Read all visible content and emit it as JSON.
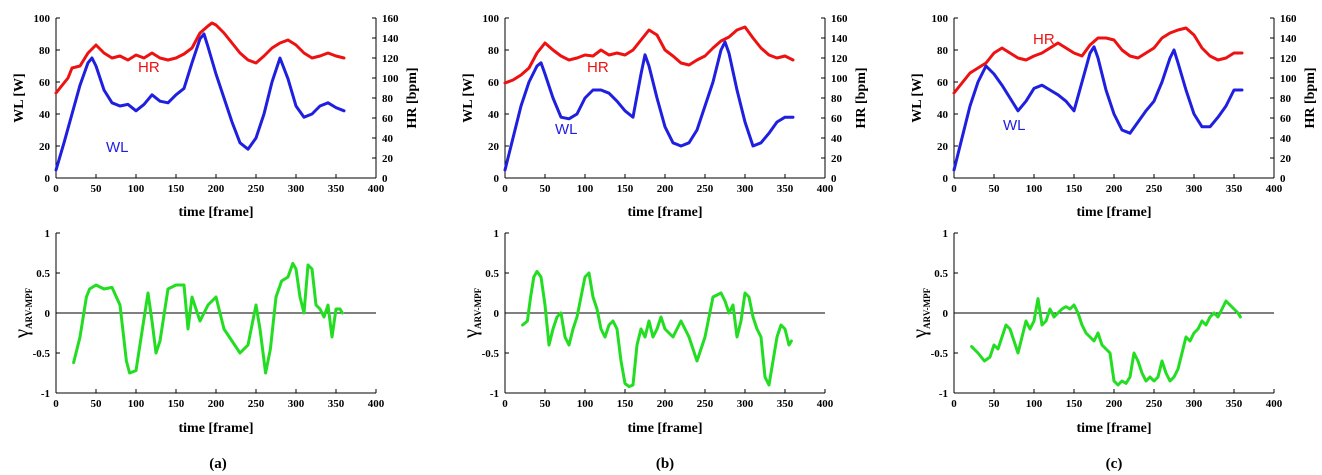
{
  "colors": {
    "wl": "#1f1fe0",
    "hr": "#ee1111",
    "gamma": "#22dd22",
    "axis": "#000000"
  },
  "chart_data": [
    {
      "type": "line",
      "panel_label": "(a)",
      "xlabel": "time [frame]",
      "ylabel": "WL [W]",
      "y2label": "HR [bpm]",
      "xlim": [
        0,
        400
      ],
      "ylim": [
        0,
        100
      ],
      "y2lim": [
        0,
        160
      ],
      "xticks": [
        0,
        50,
        100,
        150,
        200,
        250,
        300,
        350,
        400
      ],
      "yticks": [
        0,
        20,
        40,
        60,
        80,
        100
      ],
      "y2ticks": [
        0,
        20,
        40,
        60,
        80,
        100,
        120,
        140,
        160
      ],
      "series": [
        {
          "name": "WL",
          "axis": "left",
          "x": [
            0,
            10,
            20,
            30,
            40,
            45,
            50,
            60,
            70,
            80,
            90,
            100,
            110,
            120,
            130,
            140,
            150,
            160,
            170,
            180,
            185,
            190,
            200,
            210,
            220,
            230,
            240,
            250,
            260,
            270,
            280,
            290,
            300,
            310,
            320,
            330,
            340,
            350,
            360
          ],
          "values": [
            5,
            22,
            40,
            58,
            72,
            75,
            70,
            55,
            47,
            45,
            46,
            42,
            46,
            52,
            48,
            47,
            52,
            56,
            72,
            87,
            90,
            82,
            65,
            50,
            35,
            22,
            18,
            25,
            40,
            60,
            75,
            62,
            45,
            38,
            40,
            45,
            47,
            44,
            42
          ]
        },
        {
          "name": "HR",
          "axis": "right",
          "x": [
            0,
            10,
            15,
            20,
            30,
            40,
            50,
            60,
            70,
            80,
            90,
            100,
            110,
            120,
            130,
            140,
            150,
            160,
            170,
            180,
            190,
            195,
            200,
            210,
            220,
            230,
            240,
            250,
            260,
            270,
            280,
            290,
            300,
            310,
            320,
            330,
            340,
            350,
            360
          ],
          "values": [
            85,
            95,
            100,
            110,
            112,
            125,
            133,
            125,
            120,
            122,
            118,
            123,
            120,
            125,
            120,
            118,
            120,
            124,
            130,
            145,
            152,
            155,
            153,
            145,
            135,
            125,
            118,
            115,
            122,
            130,
            135,
            138,
            133,
            125,
            120,
            122,
            125,
            122,
            120
          ]
        }
      ]
    },
    {
      "type": "line",
      "panel_label": "(b)",
      "xlabel": "time [frame]",
      "ylabel": "WL [W]",
      "y2label": "HR [bpm]",
      "xlim": [
        0,
        400
      ],
      "ylim": [
        0,
        100
      ],
      "y2lim": [
        0,
        160
      ],
      "xticks": [
        0,
        50,
        100,
        150,
        200,
        250,
        300,
        350,
        400
      ],
      "yticks": [
        0,
        20,
        40,
        60,
        80,
        100
      ],
      "y2ticks": [
        0,
        20,
        40,
        60,
        80,
        100,
        120,
        140,
        160
      ],
      "series": [
        {
          "name": "WL",
          "axis": "left",
          "x": [
            0,
            10,
            20,
            30,
            40,
            45,
            50,
            60,
            70,
            80,
            90,
            100,
            110,
            120,
            130,
            140,
            150,
            160,
            170,
            175,
            180,
            190,
            200,
            210,
            220,
            230,
            240,
            250,
            260,
            270,
            275,
            280,
            290,
            300,
            310,
            320,
            330,
            340,
            350,
            360
          ],
          "values": [
            5,
            25,
            45,
            60,
            70,
            72,
            65,
            50,
            38,
            37,
            40,
            50,
            55,
            55,
            53,
            48,
            42,
            38,
            65,
            77,
            70,
            50,
            32,
            22,
            20,
            22,
            30,
            45,
            60,
            80,
            85,
            78,
            55,
            35,
            20,
            22,
            28,
            35,
            38,
            38
          ]
        },
        {
          "name": "HR",
          "axis": "right",
          "x": [
            0,
            10,
            20,
            30,
            40,
            50,
            60,
            70,
            80,
            90,
            100,
            110,
            120,
            130,
            140,
            150,
            160,
            170,
            180,
            190,
            200,
            210,
            220,
            230,
            240,
            250,
            260,
            270,
            280,
            290,
            300,
            310,
            320,
            330,
            340,
            350,
            360
          ],
          "values": [
            95,
            98,
            103,
            110,
            125,
            135,
            128,
            122,
            118,
            120,
            123,
            122,
            128,
            123,
            125,
            123,
            128,
            138,
            148,
            143,
            128,
            122,
            115,
            113,
            118,
            122,
            130,
            137,
            141,
            148,
            151,
            140,
            130,
            123,
            120,
            122,
            118
          ]
        }
      ]
    },
    {
      "type": "line",
      "panel_label": "(c)",
      "xlabel": "time [frame]",
      "ylabel": "WL [W]",
      "y2label": "HR [bpm]",
      "xlim": [
        0,
        400
      ],
      "ylim": [
        0,
        100
      ],
      "y2lim": [
        0,
        160
      ],
      "xticks": [
        0,
        50,
        100,
        150,
        200,
        250,
        300,
        350,
        400
      ],
      "yticks": [
        0,
        20,
        40,
        60,
        80,
        100
      ],
      "y2ticks": [
        0,
        20,
        40,
        60,
        80,
        100,
        120,
        140,
        160
      ],
      "series": [
        {
          "name": "WL",
          "axis": "left",
          "x": [
            0,
            10,
            20,
            30,
            40,
            50,
            60,
            70,
            80,
            90,
            100,
            110,
            120,
            130,
            140,
            150,
            160,
            170,
            175,
            180,
            190,
            200,
            210,
            220,
            230,
            240,
            250,
            260,
            270,
            275,
            280,
            290,
            300,
            310,
            320,
            330,
            340,
            350,
            360
          ],
          "values": [
            5,
            25,
            45,
            60,
            70,
            65,
            58,
            50,
            42,
            48,
            56,
            58,
            55,
            52,
            48,
            42,
            60,
            78,
            82,
            75,
            55,
            40,
            30,
            28,
            35,
            42,
            48,
            60,
            75,
            80,
            72,
            55,
            40,
            32,
            32,
            38,
            45,
            55,
            55
          ]
        },
        {
          "name": "HR",
          "axis": "right",
          "x": [
            0,
            10,
            20,
            30,
            40,
            50,
            60,
            70,
            80,
            90,
            100,
            110,
            120,
            130,
            140,
            150,
            160,
            170,
            180,
            190,
            200,
            210,
            220,
            230,
            240,
            250,
            260,
            270,
            280,
            290,
            300,
            310,
            320,
            330,
            340,
            350,
            360
          ],
          "values": [
            85,
            95,
            105,
            110,
            115,
            125,
            130,
            125,
            120,
            118,
            122,
            125,
            130,
            135,
            130,
            125,
            122,
            133,
            140,
            140,
            138,
            128,
            122,
            120,
            125,
            130,
            140,
            145,
            148,
            150,
            143,
            130,
            122,
            118,
            120,
            125,
            125
          ]
        }
      ]
    },
    {
      "type": "line",
      "xlabel": "time [frame]",
      "ylabel": "γ",
      "ylabel_sub": "ARV-MPF",
      "xlim": [
        0,
        400
      ],
      "ylim": [
        -1,
        1
      ],
      "xticks": [
        0,
        50,
        100,
        150,
        200,
        250,
        300,
        350,
        400
      ],
      "yticks": [
        -1,
        -0.5,
        0,
        0.5,
        1
      ],
      "series": [
        {
          "name": "",
          "x": [
            22,
            30,
            38,
            42,
            50,
            60,
            70,
            80,
            88,
            92,
            100,
            108,
            115,
            120,
            125,
            130,
            140,
            150,
            160,
            165,
            170,
            180,
            190,
            200,
            210,
            220,
            230,
            240,
            250,
            255,
            262,
            268,
            275,
            282,
            290,
            296,
            300,
            305,
            310,
            315,
            320,
            325,
            330,
            335,
            340,
            345,
            350,
            355,
            358
          ],
          "values": [
            -0.62,
            -0.3,
            0.2,
            0.3,
            0.35,
            0.3,
            0.32,
            0.1,
            -0.6,
            -0.75,
            -0.72,
            -0.2,
            0.25,
            -0.1,
            -0.5,
            -0.35,
            0.3,
            0.35,
            0.35,
            -0.2,
            0.2,
            -0.1,
            0.1,
            0.2,
            -0.2,
            -0.35,
            -0.5,
            -0.4,
            0.1,
            -0.2,
            -0.75,
            -0.45,
            0.2,
            0.4,
            0.45,
            0.62,
            0.55,
            0.2,
            0.0,
            0.6,
            0.55,
            0.1,
            0.05,
            -0.05,
            0.1,
            -0.3,
            0.05,
            0.05,
            0.0
          ]
        }
      ]
    },
    {
      "type": "line",
      "xlabel": "time [frame]",
      "ylabel": "γ",
      "ylabel_sub": "ARV-MPF",
      "xlim": [
        0,
        400
      ],
      "ylim": [
        -1,
        1
      ],
      "xticks": [
        0,
        50,
        100,
        150,
        200,
        250,
        300,
        350,
        400
      ],
      "yticks": [
        -1,
        -0.5,
        0,
        0.5,
        1
      ],
      "series": [
        {
          "name": "",
          "x": [
            22,
            28,
            32,
            36,
            40,
            45,
            50,
            55,
            60,
            65,
            70,
            75,
            80,
            85,
            90,
            95,
            100,
            105,
            110,
            115,
            120,
            125,
            130,
            135,
            140,
            145,
            150,
            155,
            160,
            165,
            170,
            175,
            180,
            185,
            190,
            195,
            200,
            210,
            220,
            230,
            240,
            250,
            260,
            270,
            275,
            280,
            285,
            290,
            295,
            300,
            305,
            310,
            315,
            320,
            325,
            330,
            335,
            340,
            345,
            350,
            355,
            358
          ],
          "values": [
            -0.15,
            -0.1,
            0.2,
            0.45,
            0.52,
            0.45,
            0.1,
            -0.4,
            -0.2,
            -0.05,
            0.0,
            -0.3,
            -0.4,
            -0.2,
            -0.05,
            0.2,
            0.45,
            0.5,
            0.2,
            0.05,
            -0.2,
            -0.3,
            -0.15,
            -0.1,
            -0.2,
            -0.6,
            -0.88,
            -0.92,
            -0.9,
            -0.4,
            -0.2,
            -0.3,
            -0.1,
            -0.3,
            -0.2,
            -0.05,
            -0.2,
            -0.3,
            -0.1,
            -0.3,
            -0.6,
            -0.3,
            0.2,
            0.25,
            0.15,
            0.0,
            0.1,
            -0.3,
            -0.1,
            0.25,
            0.2,
            -0.05,
            -0.2,
            -0.3,
            -0.8,
            -0.9,
            -0.6,
            -0.3,
            -0.15,
            -0.2,
            -0.4,
            -0.35
          ]
        }
      ]
    },
    {
      "type": "line",
      "xlabel": "time [frame]",
      "ylabel": "γ",
      "ylabel_sub": "ARV-MPF",
      "xlim": [
        0,
        400
      ],
      "ylim": [
        -1,
        1
      ],
      "xticks": [
        0,
        50,
        100,
        150,
        200,
        250,
        300,
        350,
        400
      ],
      "yticks": [
        -1,
        -0.5,
        0,
        0.5,
        1
      ],
      "series": [
        {
          "name": "",
          "x": [
            22,
            30,
            38,
            45,
            50,
            55,
            60,
            65,
            70,
            75,
            80,
            85,
            90,
            95,
            100,
            105,
            110,
            115,
            120,
            125,
            130,
            135,
            140,
            145,
            150,
            155,
            160,
            165,
            170,
            175,
            180,
            185,
            190,
            195,
            200,
            205,
            210,
            215,
            220,
            225,
            230,
            235,
            240,
            245,
            250,
            255,
            260,
            265,
            270,
            275,
            280,
            285,
            290,
            295,
            300,
            305,
            310,
            315,
            320,
            325,
            330,
            335,
            340,
            345,
            350,
            355,
            358
          ],
          "values": [
            -0.42,
            -0.5,
            -0.6,
            -0.55,
            -0.4,
            -0.45,
            -0.3,
            -0.15,
            -0.2,
            -0.35,
            -0.5,
            -0.3,
            -0.1,
            -0.2,
            -0.1,
            0.18,
            -0.15,
            -0.1,
            0.05,
            -0.05,
            0.0,
            0.05,
            0.08,
            0.05,
            0.1,
            0.0,
            -0.15,
            -0.25,
            -0.3,
            -0.35,
            -0.25,
            -0.4,
            -0.45,
            -0.5,
            -0.85,
            -0.9,
            -0.85,
            -0.88,
            -0.8,
            -0.5,
            -0.6,
            -0.75,
            -0.85,
            -0.8,
            -0.85,
            -0.8,
            -0.6,
            -0.75,
            -0.85,
            -0.8,
            -0.7,
            -0.5,
            -0.3,
            -0.35,
            -0.25,
            -0.2,
            -0.1,
            -0.15,
            -0.05,
            0.0,
            -0.05,
            0.05,
            0.15,
            0.1,
            0.05,
            0.0,
            -0.05
          ]
        }
      ]
    }
  ]
}
